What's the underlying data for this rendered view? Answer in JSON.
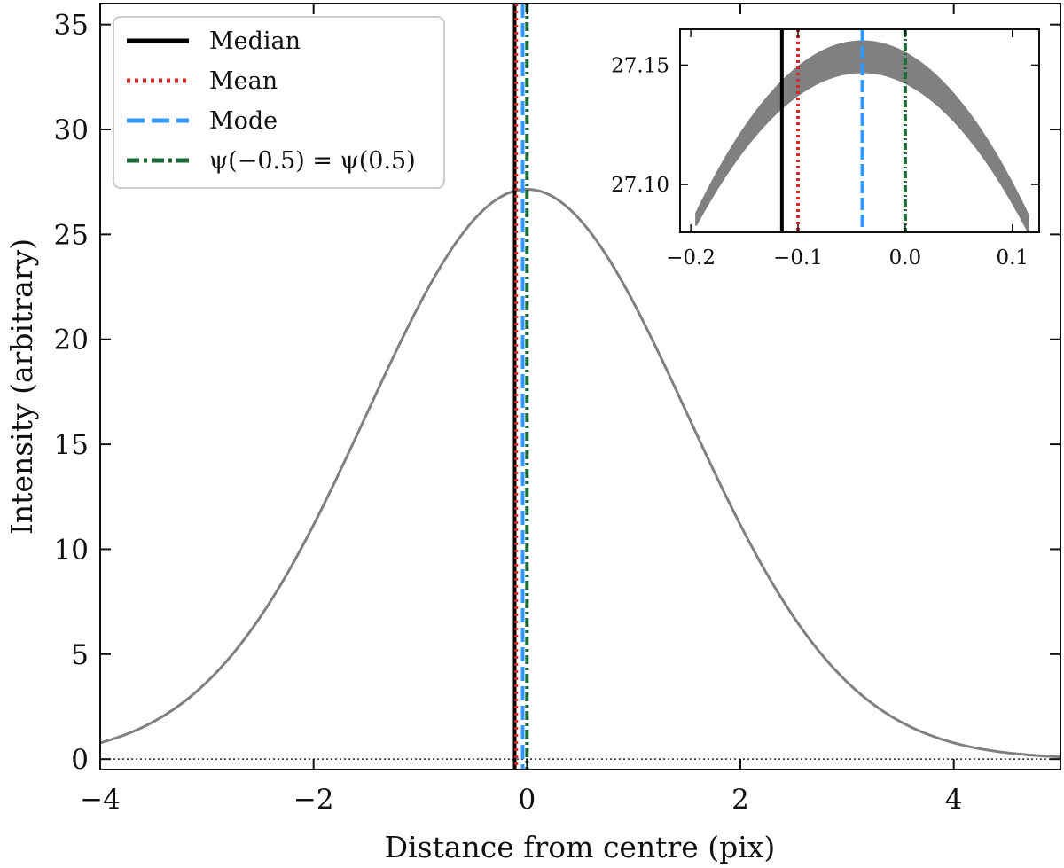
{
  "chart_data": [
    {
      "type": "line",
      "panel": "main",
      "xlabel": "Distance from centre (pix)",
      "ylabel": "Intensity (arbitrary)",
      "xlim": [
        -4,
        5
      ],
      "ylim": [
        -0.5,
        36
      ],
      "xticks": [
        -4,
        -2,
        0,
        2,
        4
      ],
      "xtick_labels": [
        "−4",
        "−2",
        "0",
        "2",
        "4"
      ],
      "yticks": [
        0,
        5,
        10,
        15,
        20,
        25,
        30,
        35
      ],
      "ytick_labels": [
        "0",
        "5",
        "10",
        "15",
        "20",
        "25",
        "30",
        "35"
      ],
      "grid": false,
      "legend_position": "upper-left",
      "profile": {
        "color": "#808080",
        "amplitude": 27.15,
        "sigma": 1.5,
        "x": [
          -4,
          -3.5,
          -3,
          -2.5,
          -2,
          -1.5,
          -1,
          -0.5,
          0,
          0.5,
          1,
          1.5,
          2,
          2.5,
          3,
          3.5,
          4,
          4.5,
          5
        ],
        "y": [
          0.27,
          1.18,
          3.67,
          8.0,
          11.1,
          16.5,
          21.6,
          25.5,
          27.15,
          25.5,
          21.6,
          16.5,
          11.1,
          6.5,
          3.67,
          1.18,
          0.27,
          0.07,
          0.01
        ]
      },
      "zero_line": {
        "y": 0,
        "style": "dotted",
        "color": "#222222"
      },
      "vertical_lines": [
        {
          "name": "Median",
          "x": -0.115,
          "color": "#000000",
          "style": "solid"
        },
        {
          "name": "Mean",
          "x": -0.1,
          "color": "#d62728",
          "style": "dotted"
        },
        {
          "name": "Mode",
          "x": -0.04,
          "color": "#3399ff",
          "style": "dashed"
        },
        {
          "name": "ψ(−0.5) = ψ(0.5)",
          "x": 0.0,
          "color": "#1a6b35",
          "style": "dashdot"
        }
      ]
    },
    {
      "type": "line",
      "panel": "inset",
      "xlim": [
        -0.21,
        0.125
      ],
      "ylim": [
        27.08,
        27.165
      ],
      "xticks": [
        -0.2,
        -0.1,
        0.0,
        0.1
      ],
      "xtick_labels": [
        "−0.2",
        "−0.1",
        "0.0",
        "0.1"
      ],
      "yticks": [
        27.1,
        27.15
      ],
      "ytick_labels": [
        "27.10",
        "27.15"
      ],
      "band": {
        "color": "#808080",
        "x_range": [
          -0.195,
          0.115
        ],
        "upper_peak": {
          "x": -0.04,
          "y": 27.16
        },
        "lower_peak": {
          "x": -0.04,
          "y": 27.147
        },
        "upper_ends": [
          27.088,
          27.087
        ],
        "lower_ends": [
          27.083,
          27.08
        ]
      },
      "vertical_lines": [
        {
          "name": "Median",
          "x": -0.115,
          "color": "#000000",
          "style": "solid"
        },
        {
          "name": "Mean",
          "x": -0.1,
          "color": "#d62728",
          "style": "dotted"
        },
        {
          "name": "Mode",
          "x": -0.04,
          "color": "#3399ff",
          "style": "dashed"
        },
        {
          "name": "ψ(−0.5) = ψ(0.5)",
          "x": 0.0,
          "color": "#1a6b35",
          "style": "dashdot"
        }
      ]
    }
  ]
}
